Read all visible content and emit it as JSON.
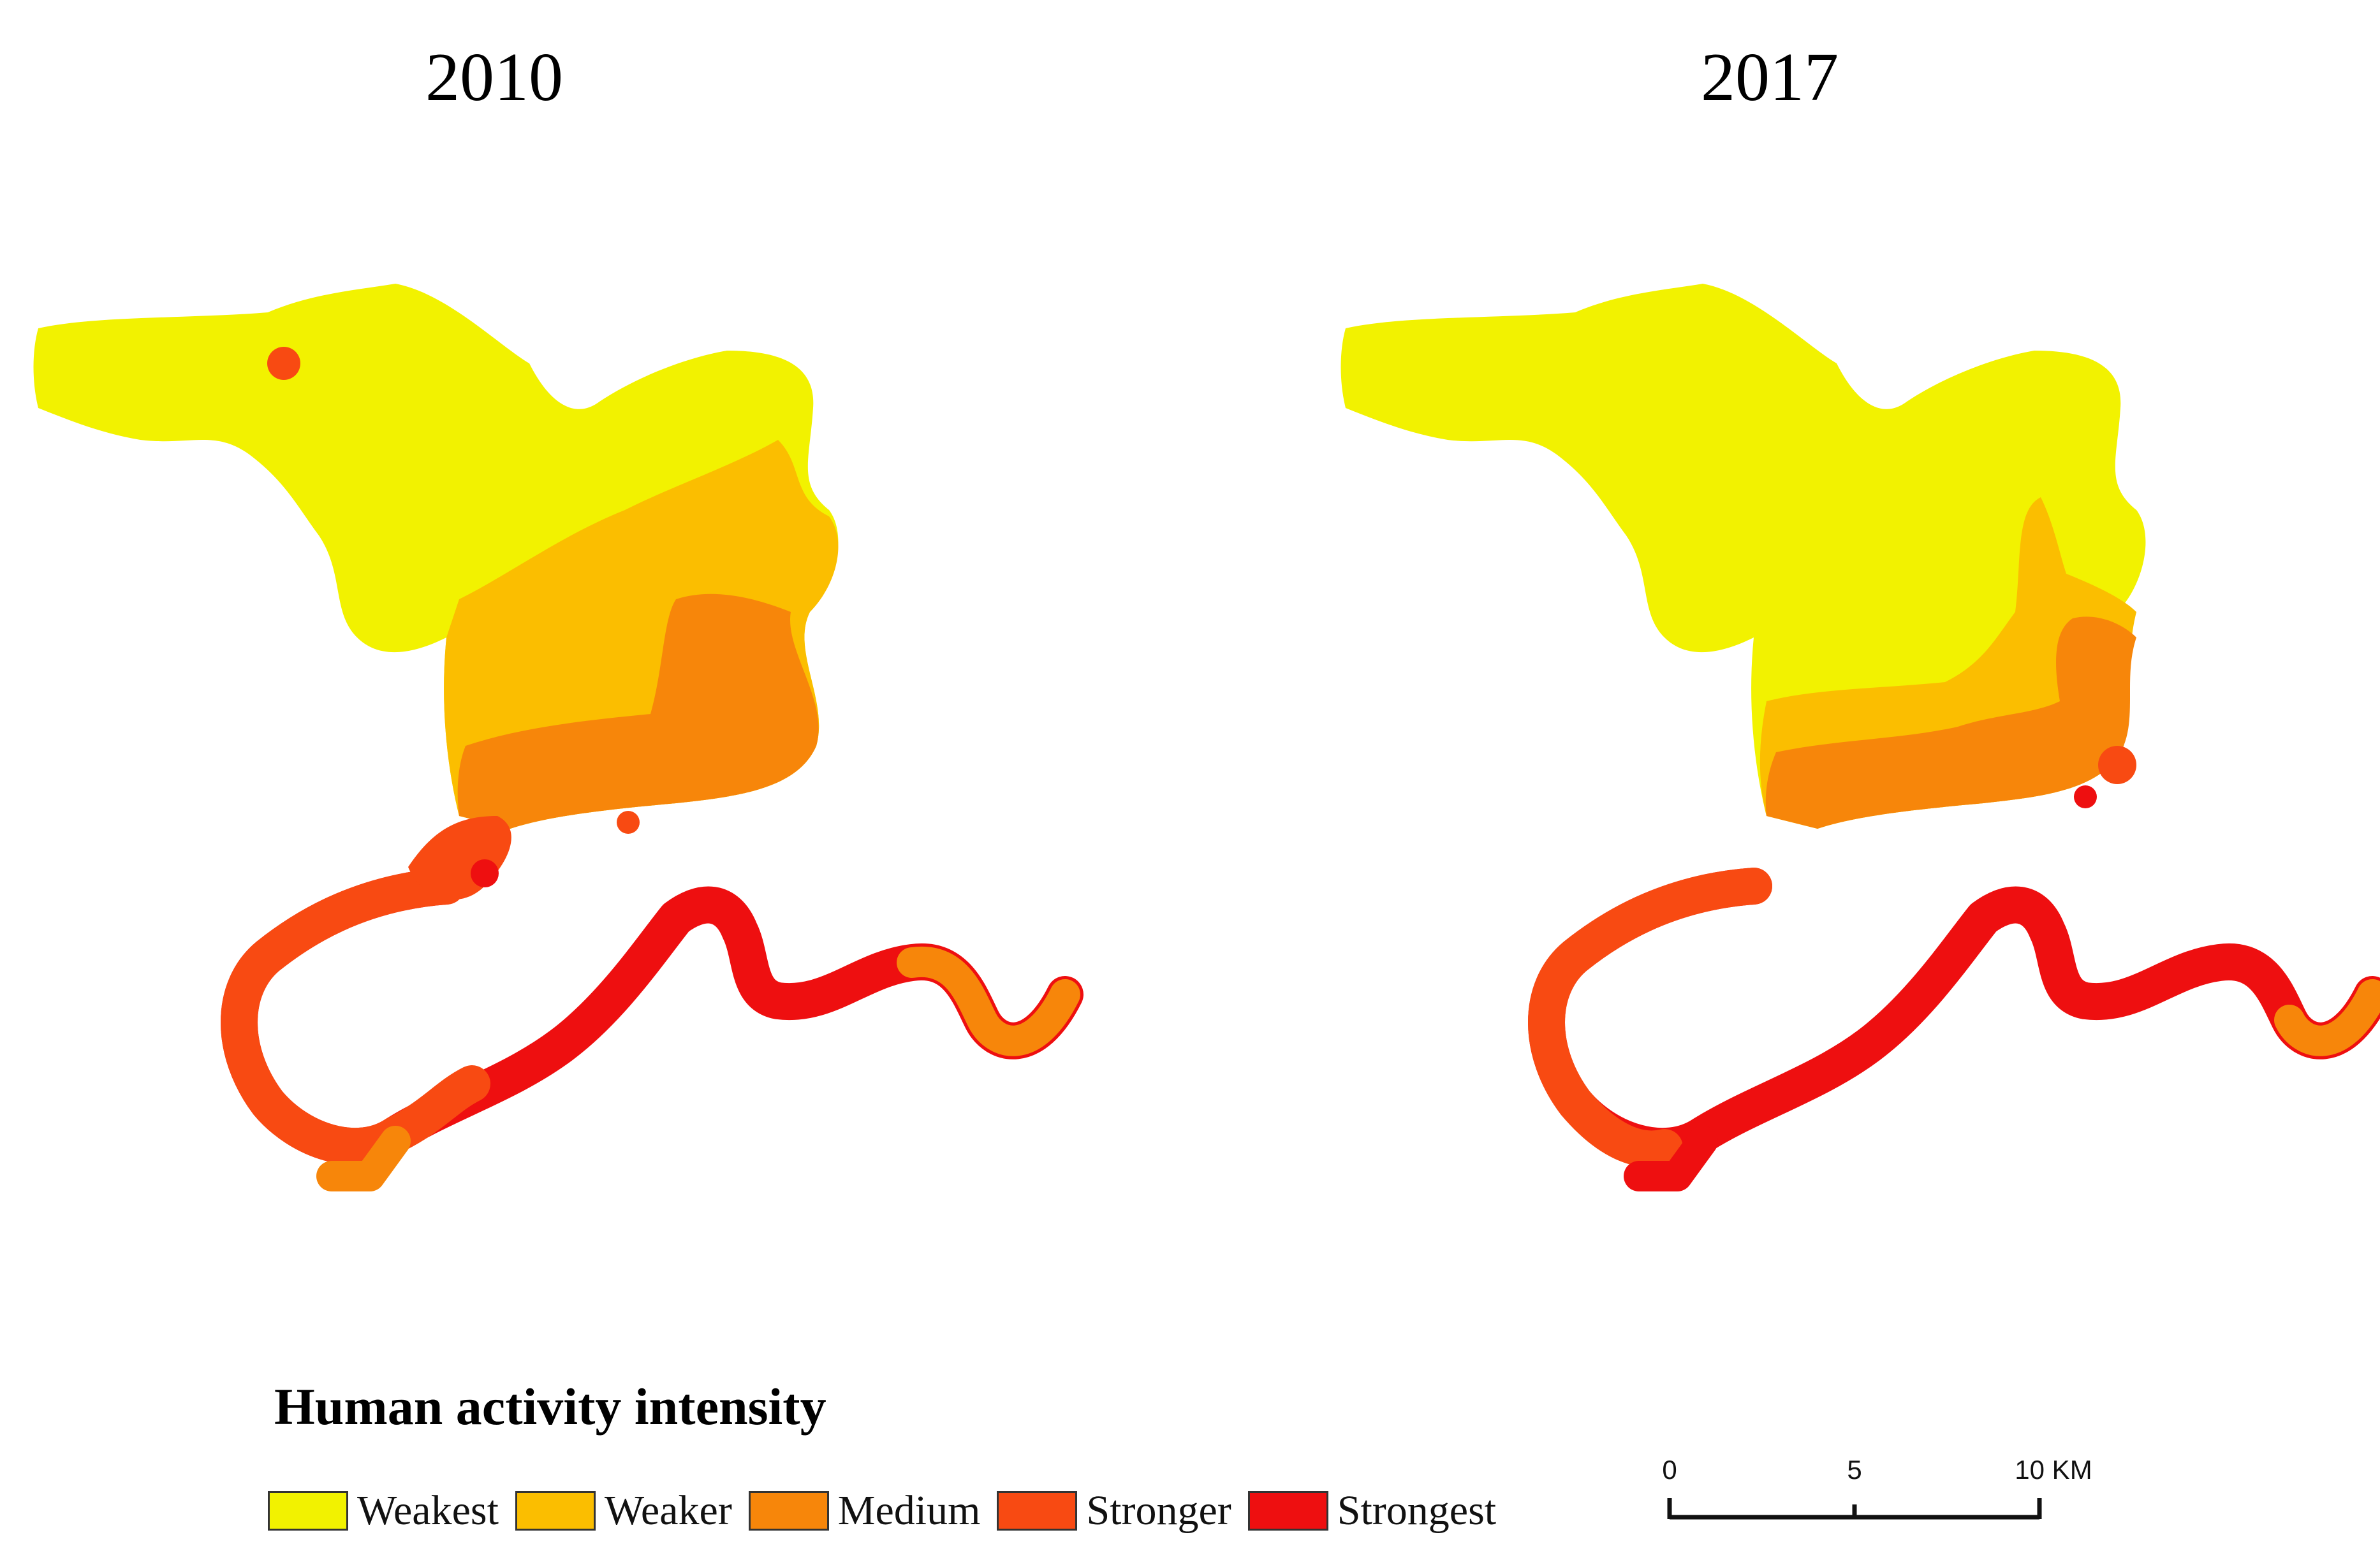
{
  "maps": [
    {
      "year": "2010"
    },
    {
      "year": "2017"
    }
  ],
  "legend": {
    "title": "Human activity intensity",
    "items": [
      {
        "label": "Weakest",
        "color": "#f2f200"
      },
      {
        "label": "Weaker",
        "color": "#fbbe00"
      },
      {
        "label": "Medium",
        "color": "#f7860a"
      },
      {
        "label": "Stronger",
        "color": "#f84a12"
      },
      {
        "label": "Strongest",
        "color": "#ee0f10"
      }
    ]
  },
  "scale_bar": {
    "ticks": [
      "0",
      "5",
      "10 KM"
    ]
  }
}
